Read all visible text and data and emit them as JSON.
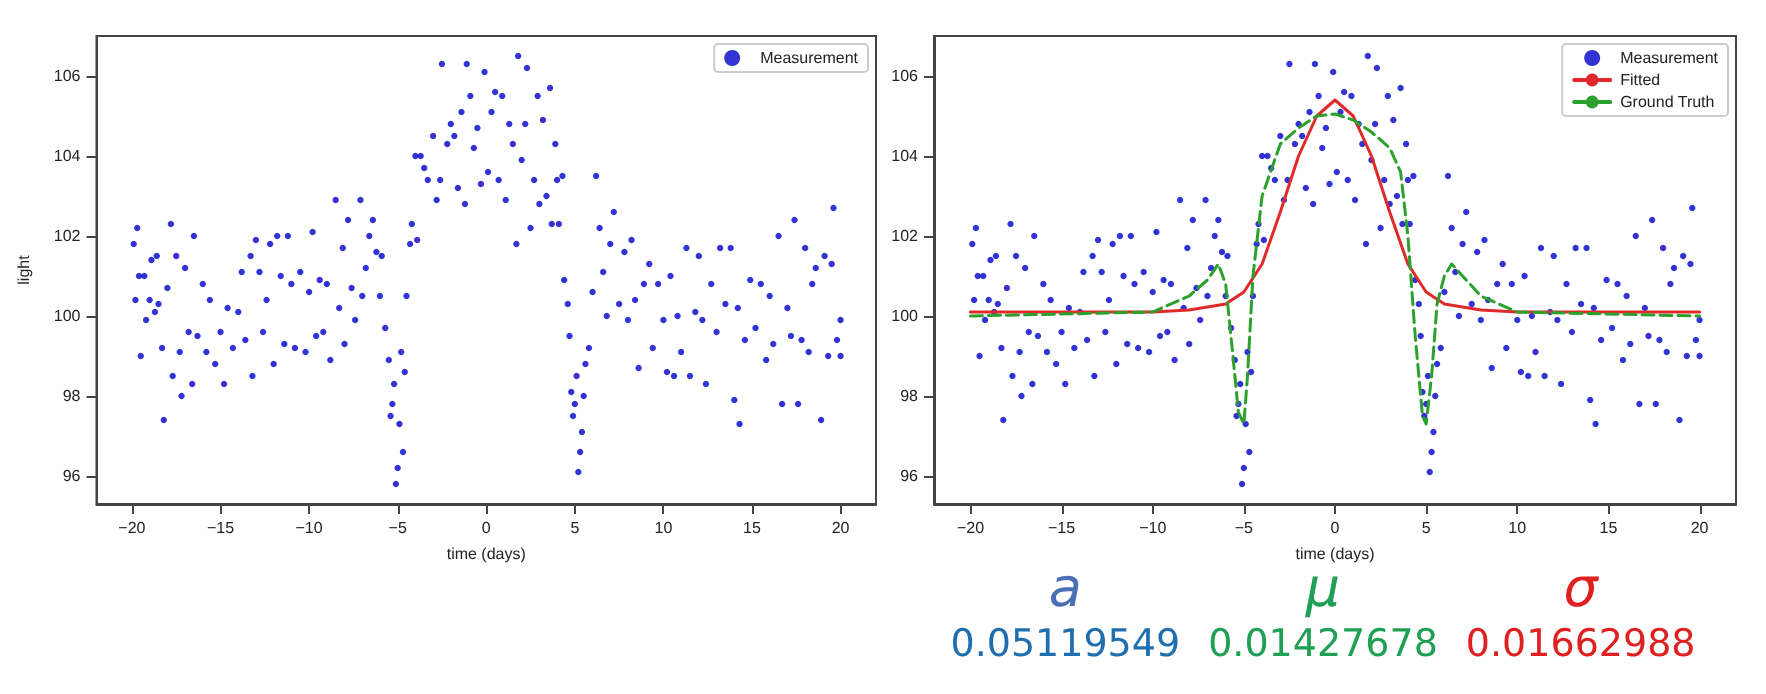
{
  "chart_data": [
    {
      "type": "scatter",
      "xlabel": "time (days)",
      "ylabel": "light",
      "xlim": [
        -22,
        22
      ],
      "ylim": [
        95.3,
        107
      ],
      "xticks": [
        -20,
        -15,
        -10,
        -5,
        0,
        5,
        10,
        15,
        20
      ],
      "yticks": [
        96,
        98,
        100,
        102,
        104,
        106
      ],
      "grid": false,
      "legend": "top right",
      "series": [
        {
          "name": "Measurement",
          "type": "scatter",
          "marker": "circle",
          "color": "#0000c8",
          "x": [
            -19.9,
            -19.8,
            -19.7,
            -19.6,
            -19.5,
            -19.3,
            -19.2,
            -19,
            -18.9,
            -18.7,
            -18.6,
            -18.5,
            -18.3,
            -18.2,
            -18,
            -17.8,
            -17.7,
            -17.5,
            -17.3,
            -17.2,
            -17,
            -16.8,
            -16.6,
            -16.5,
            -16.3,
            -16,
            -15.8,
            -15.6,
            -15.3,
            -15,
            -14.8,
            -14.6,
            -14.3,
            -14,
            -13.8,
            -13.6,
            -13.3,
            -13.2,
            -13,
            -12.8,
            -12.6,
            -12.4,
            -12.2,
            -12,
            -11.8,
            -11.6,
            -11.4,
            -11.2,
            -11,
            -10.8,
            -10.5,
            -10.2,
            -10,
            -9.8,
            -9.6,
            -9.4,
            -9.2,
            -9,
            -8.8,
            -8.5,
            -8.3,
            -8.1,
            -8,
            -7.8,
            -7.6,
            -7.4,
            -7.1,
            -7,
            -6.8,
            -6.6,
            -6.4,
            -6.2,
            -6,
            -5.9,
            -5.7,
            -5.5,
            -5.4,
            -5.3,
            -5.2,
            -5.1,
            -5,
            -4.9,
            -4.8,
            -4.7,
            -4.6,
            -4.5,
            -4.3,
            -4.2,
            -4,
            -3.9,
            -3.7,
            -3.5,
            -3.3,
            -3,
            -2.8,
            -2.6,
            -2.5,
            -2.2,
            -2,
            -1.8,
            -1.6,
            -1.4,
            -1.2,
            -1.1,
            -0.9,
            -0.7,
            -0.5,
            -0.3,
            -0.1,
            0.1,
            0.3,
            0.5,
            0.7,
            0.9,
            1.1,
            1.3,
            1.5,
            1.7,
            1.8,
            2,
            2.2,
            2.3,
            2.5,
            2.7,
            2.9,
            3,
            3.2,
            3.4,
            3.6,
            3.7,
            3.9,
            4,
            4.1,
            4.3,
            4.4,
            4.6,
            4.7,
            4.8,
            4.9,
            5,
            5.1,
            5.2,
            5.3,
            5.4,
            5.5,
            5.6,
            5.8,
            6,
            6.2,
            6.4,
            6.6,
            6.8,
            7,
            7.2,
            7.5,
            7.8,
            8,
            8.2,
            8.4,
            8.6,
            8.9,
            9.2,
            9.4,
            9.7,
            10,
            10.2,
            10.4,
            10.6,
            10.8,
            11,
            11.3,
            11.5,
            11.8,
            12,
            12.2,
            12.4,
            12.7,
            13,
            13.2,
            13.5,
            13.8,
            14,
            14.2,
            14.3,
            14.6,
            14.9,
            15.2,
            15.5,
            15.8,
            16,
            16.2,
            16.5,
            16.7,
            17,
            17.2,
            17.4,
            17.6,
            17.8,
            18,
            18.2,
            18.4,
            18.6,
            18.9,
            19.1,
            19.3,
            19.5,
            19.6,
            19.8,
            20,
            20
          ],
          "values": [
            101.8,
            100.4,
            102.2,
            101,
            99,
            101,
            99.9,
            100.4,
            101.4,
            100.1,
            101.5,
            100.3,
            99.2,
            97.4,
            100.7,
            102.3,
            98.5,
            101.5,
            99.1,
            98,
            101.2,
            99.6,
            98.3,
            102,
            99.5,
            100.8,
            99.1,
            100.4,
            98.8,
            99.6,
            98.3,
            100.2,
            99.2,
            100.1,
            101.1,
            99.4,
            101.5,
            98.5,
            101.9,
            101.1,
            99.6,
            100.4,
            101.8,
            98.8,
            102,
            101,
            99.3,
            102,
            100.8,
            99.2,
            101.1,
            99.1,
            100.6,
            102.1,
            99.5,
            100.9,
            99.6,
            100.8,
            98.9,
            102.9,
            100.2,
            101.7,
            99.3,
            102.4,
            100.7,
            99.9,
            102.9,
            100.5,
            101.2,
            102,
            102.4,
            101.6,
            100.5,
            101.5,
            99.7,
            98.9,
            97.5,
            97.8,
            98.3,
            95.8,
            96.2,
            97.3,
            99.1,
            96.6,
            98.6,
            100.5,
            101.8,
            102.3,
            104,
            101.9,
            104,
            103.7,
            103.4,
            104.5,
            102.9,
            103.4,
            106.3,
            104.3,
            104.8,
            104.5,
            103.2,
            105.1,
            102.8,
            106.3,
            105.5,
            104.2,
            104.7,
            103.3,
            106.1,
            103.6,
            105.1,
            105.6,
            103.4,
            105.5,
            102.9,
            104.8,
            104.3,
            101.8,
            106.5,
            103.9,
            104.8,
            106.2,
            102.2,
            103.4,
            105.5,
            102.8,
            104.9,
            103,
            105.7,
            102.3,
            104.3,
            103.4,
            102.3,
            103.5,
            100.9,
            100.3,
            99.5,
            98.1,
            97.5,
            97.8,
            98.5,
            96.1,
            96.6,
            97.1,
            98,
            98.8,
            99.2,
            100.6,
            103.5,
            102.2,
            101.1,
            100,
            101.8,
            102.6,
            100.3,
            101.6,
            99.9,
            101.9,
            100.4,
            98.7,
            100.8,
            101.3,
            99.2,
            100.8,
            99.9,
            98.6,
            101,
            98.5,
            100,
            99.1,
            101.7,
            98.5,
            100.1,
            101.5,
            99.9,
            98.3,
            100.8,
            99.6,
            101.7,
            100.3,
            101.7,
            97.9,
            100.2,
            97.3,
            99.4,
            100.9,
            99.7,
            100.8,
            98.9,
            100.5,
            99.3,
            102,
            97.8,
            100.2,
            99.5,
            102.4,
            97.8,
            99.4,
            101.7,
            99.1,
            100.8,
            101.2,
            97.4,
            101.5,
            99,
            101.3,
            102.7,
            99.4,
            99.9,
            99
          ]
        }
      ]
    },
    {
      "type": "scatter",
      "xlabel": "time (days)",
      "xlim": [
        -22,
        22
      ],
      "ylim": [
        95.3,
        107
      ],
      "xticks": [
        -20,
        -15,
        -10,
        -5,
        0,
        5,
        10,
        15,
        20
      ],
      "yticks": [
        96,
        98,
        100,
        102,
        104,
        106
      ],
      "grid": false,
      "legend": "top right",
      "annotations": [
        "a",
        "0.05119549",
        "μ",
        "0.01427678",
        "σ",
        "0.01662988"
      ],
      "series": [
        {
          "name": "Measurement",
          "type": "scatter",
          "marker": "circle",
          "color": "#0000c8",
          "x": [
            -19.9,
            -19.8,
            -19.7,
            -19.6,
            -19.5,
            -19.3,
            -19.2,
            -19,
            -18.9,
            -18.7,
            -18.6,
            -18.5,
            -18.3,
            -18.2,
            -18,
            -17.8,
            -17.7,
            -17.5,
            -17.3,
            -17.2,
            -17,
            -16.8,
            -16.6,
            -16.5,
            -16.3,
            -16,
            -15.8,
            -15.6,
            -15.3,
            -15,
            -14.8,
            -14.6,
            -14.3,
            -14,
            -13.8,
            -13.6,
            -13.3,
            -13.2,
            -13,
            -12.8,
            -12.6,
            -12.4,
            -12.2,
            -12,
            -11.8,
            -11.6,
            -11.4,
            -11.2,
            -11,
            -10.8,
            -10.5,
            -10.2,
            -10,
            -9.8,
            -9.6,
            -9.4,
            -9.2,
            -9,
            -8.8,
            -8.5,
            -8.3,
            -8.1,
            -8,
            -7.8,
            -7.6,
            -7.4,
            -7.1,
            -7,
            -6.8,
            -6.6,
            -6.4,
            -6.2,
            -6,
            -5.9,
            -5.7,
            -5.5,
            -5.4,
            -5.3,
            -5.2,
            -5.1,
            -5,
            -4.9,
            -4.8,
            -4.7,
            -4.6,
            -4.5,
            -4.3,
            -4.2,
            -4,
            -3.9,
            -3.7,
            -3.5,
            -3.3,
            -3,
            -2.8,
            -2.6,
            -2.5,
            -2.2,
            -2,
            -1.8,
            -1.6,
            -1.4,
            -1.2,
            -1.1,
            -0.9,
            -0.7,
            -0.5,
            -0.3,
            -0.1,
            0.1,
            0.3,
            0.5,
            0.7,
            0.9,
            1.1,
            1.3,
            1.5,
            1.7,
            1.8,
            2,
            2.2,
            2.3,
            2.5,
            2.7,
            2.9,
            3,
            3.2,
            3.4,
            3.6,
            3.7,
            3.9,
            4,
            4.1,
            4.3,
            4.4,
            4.6,
            4.7,
            4.8,
            4.9,
            5,
            5.1,
            5.2,
            5.3,
            5.4,
            5.5,
            5.6,
            5.8,
            6,
            6.2,
            6.4,
            6.6,
            6.8,
            7,
            7.2,
            7.5,
            7.8,
            8,
            8.2,
            8.4,
            8.6,
            8.9,
            9.2,
            9.4,
            9.7,
            10,
            10.2,
            10.4,
            10.6,
            10.8,
            11,
            11.3,
            11.5,
            11.8,
            12,
            12.2,
            12.4,
            12.7,
            13,
            13.2,
            13.5,
            13.8,
            14,
            14.2,
            14.3,
            14.6,
            14.9,
            15.2,
            15.5,
            15.8,
            16,
            16.2,
            16.5,
            16.7,
            17,
            17.2,
            17.4,
            17.6,
            17.8,
            18,
            18.2,
            18.4,
            18.6,
            18.9,
            19.1,
            19.3,
            19.5,
            19.6,
            19.8,
            20,
            20
          ],
          "values": [
            101.8,
            100.4,
            102.2,
            101,
            99,
            101,
            99.9,
            100.4,
            101.4,
            100.1,
            101.5,
            100.3,
            99.2,
            97.4,
            100.7,
            102.3,
            98.5,
            101.5,
            99.1,
            98,
            101.2,
            99.6,
            98.3,
            102,
            99.5,
            100.8,
            99.1,
            100.4,
            98.8,
            99.6,
            98.3,
            100.2,
            99.2,
            100.1,
            101.1,
            99.4,
            101.5,
            98.5,
            101.9,
            101.1,
            99.6,
            100.4,
            101.8,
            98.8,
            102,
            101,
            99.3,
            102,
            100.8,
            99.2,
            101.1,
            99.1,
            100.6,
            102.1,
            99.5,
            100.9,
            99.6,
            100.8,
            98.9,
            102.9,
            100.2,
            101.7,
            99.3,
            102.4,
            100.7,
            99.9,
            102.9,
            100.5,
            101.2,
            102,
            102.4,
            101.6,
            100.5,
            101.5,
            99.7,
            98.9,
            97.5,
            97.8,
            98.3,
            95.8,
            96.2,
            97.3,
            99.1,
            96.6,
            98.6,
            100.5,
            101.8,
            102.3,
            104,
            101.9,
            104,
            103.7,
            103.4,
            104.5,
            102.9,
            103.4,
            106.3,
            104.3,
            104.8,
            104.5,
            103.2,
            105.1,
            102.8,
            106.3,
            105.5,
            104.2,
            104.7,
            103.3,
            106.1,
            103.6,
            105.1,
            105.6,
            103.4,
            105.5,
            102.9,
            104.8,
            104.3,
            101.8,
            106.5,
            103.9,
            104.8,
            106.2,
            102.2,
            103.4,
            105.5,
            102.8,
            104.9,
            103,
            105.7,
            102.3,
            104.3,
            103.4,
            102.3,
            103.5,
            100.9,
            100.3,
            99.5,
            98.1,
            97.5,
            97.8,
            98.5,
            96.1,
            96.6,
            97.1,
            98,
            98.8,
            99.2,
            100.6,
            103.5,
            102.2,
            101.1,
            100,
            101.8,
            102.6,
            100.3,
            101.6,
            99.9,
            101.9,
            100.4,
            98.7,
            100.8,
            101.3,
            99.2,
            100.8,
            99.9,
            98.6,
            101,
            98.5,
            100,
            99.1,
            101.7,
            98.5,
            100.1,
            101.5,
            99.9,
            98.3,
            100.8,
            99.6,
            101.7,
            100.3,
            101.7,
            97.9,
            100.2,
            97.3,
            99.4,
            100.9,
            99.7,
            100.8,
            98.9,
            100.5,
            99.3,
            102,
            97.8,
            100.2,
            99.5,
            102.4,
            97.8,
            99.4,
            101.7,
            99.1,
            100.8,
            101.2,
            97.4,
            101.5,
            99,
            101.3,
            102.7,
            99.4,
            99.9,
            99
          ]
        },
        {
          "name": "Fitted",
          "type": "line",
          "marker": "none",
          "line_style": "solid",
          "color": "#e02a2a",
          "x": [
            -20,
            -10,
            -8,
            -6,
            -5,
            -4,
            -3,
            -2,
            -1,
            0,
            1,
            2,
            3,
            4,
            5,
            6,
            8,
            10,
            20
          ],
          "values": [
            100.1,
            100.1,
            100.15,
            100.3,
            100.6,
            101.3,
            102.6,
            104,
            105,
            105.4,
            105,
            104,
            102.6,
            101.3,
            100.6,
            100.3,
            100.15,
            100.1,
            100.1
          ]
        },
        {
          "name": "Ground Truth",
          "type": "line",
          "marker": "none",
          "line_style": "dashed",
          "color": "#2ca02c",
          "x": [
            -20,
            -10,
            -8,
            -7,
            -6.4,
            -6,
            -5.6,
            -5.3,
            -5,
            -4.8,
            -4.5,
            -4,
            -3,
            -2,
            -1,
            0,
            1,
            2,
            3,
            3.6,
            4,
            4.4,
            4.8,
            5,
            5.3,
            5.6,
            6,
            6.4,
            7,
            8,
            10,
            20
          ],
          "values": [
            100,
            100.1,
            100.5,
            100.9,
            101.3,
            100.8,
            99,
            97.6,
            97.3,
            98.5,
            101,
            103,
            104.3,
            104.7,
            105,
            105.05,
            104.9,
            104.6,
            104.2,
            103.6,
            102,
            99.5,
            97.5,
            97.3,
            98.5,
            100.3,
            101,
            101.3,
            101,
            100.5,
            100.1,
            100
          ]
        }
      ]
    }
  ]
}
